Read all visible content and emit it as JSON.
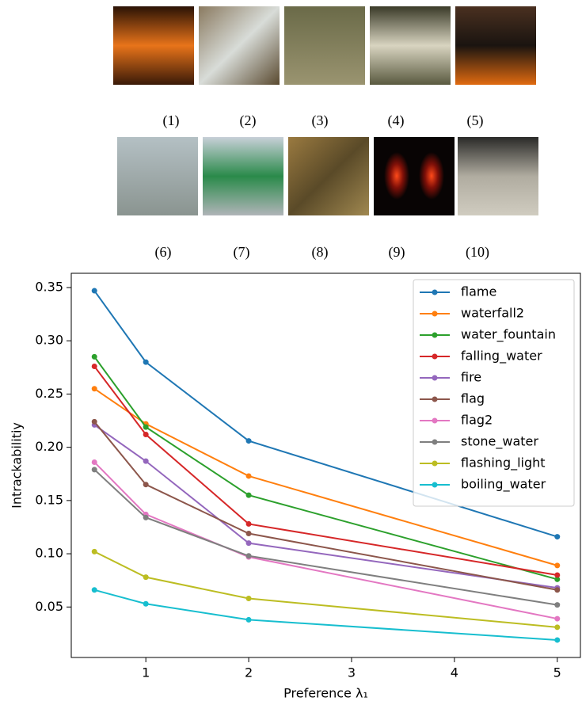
{
  "image_labels_top": [
    "(1)",
    "(2)",
    "(3)",
    "(4)",
    "(5)"
  ],
  "image_labels_bottom": [
    "(6)",
    "(7)",
    "(8)",
    "(9)",
    "(10)"
  ],
  "chart_data": {
    "type": "line",
    "x_label": "Preference λ₁",
    "y_label": "Intrackabilitiy",
    "x": [
      0.5,
      1,
      2,
      5
    ],
    "xlim": [
      0.275,
      5.225
    ],
    "ylim": [
      0.0026,
      0.3634
    ],
    "xticks": [
      1,
      2,
      3,
      4,
      5
    ],
    "yticks": [
      0.05,
      {
        "value": 0.1,
        "label": "0.10"
      },
      0.15,
      {
        "value": 0.2,
        "label": "0.20"
      },
      0.25,
      {
        "value": 0.3,
        "label": "0.30"
      },
      0.35
    ],
    "legend": "upper right",
    "series": [
      {
        "name": "flame",
        "color": "#1f77b4",
        "values": [
          0.347,
          0.28,
          0.206,
          0.116
        ]
      },
      {
        "name": "waterfall2",
        "color": "#ff7f0e",
        "values": [
          0.255,
          0.222,
          0.173,
          0.089
        ]
      },
      {
        "name": "water_fountain",
        "color": "#2ca02c",
        "values": [
          0.285,
          0.219,
          0.155,
          0.076
        ]
      },
      {
        "name": "falling_water",
        "color": "#d62728",
        "values": [
          0.276,
          0.212,
          0.128,
          0.08
        ]
      },
      {
        "name": "fire",
        "color": "#9467bd",
        "values": [
          0.221,
          0.187,
          0.11,
          0.068
        ]
      },
      {
        "name": "flag",
        "color": "#8c564b",
        "values": [
          0.224,
          0.165,
          0.119,
          0.066
        ]
      },
      {
        "name": "flag2",
        "color": "#e377c2",
        "values": [
          0.186,
          0.137,
          0.097,
          0.039
        ]
      },
      {
        "name": "stone_water",
        "color": "#7f7f7f",
        "values": [
          0.179,
          0.134,
          0.098,
          0.052
        ]
      },
      {
        "name": "flashing_light",
        "color": "#bcbd22",
        "values": [
          0.102,
          0.078,
          0.058,
          0.031
        ]
      },
      {
        "name": "boiling_water",
        "color": "#17becf",
        "values": [
          0.066,
          0.053,
          0.038,
          0.019
        ]
      }
    ]
  }
}
